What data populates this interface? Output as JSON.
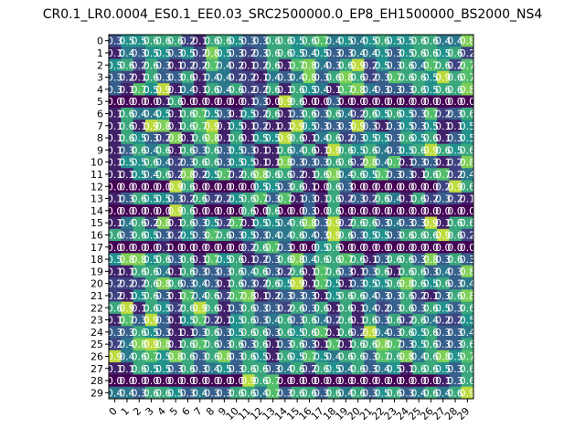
{
  "chart_data": {
    "type": "heatmap",
    "title": "CR0.1_LR0.0004_ES0.1_EE0.03_SRC2500000.0_EP8_EH1500000_BS2000_NS4",
    "x_ticks": [
      "0",
      "1",
      "2",
      "3",
      "4",
      "5",
      "6",
      "7",
      "8",
      "9",
      "10",
      "11",
      "12",
      "13",
      "14",
      "15",
      "16",
      "17",
      "18",
      "19",
      "20",
      "21",
      "22",
      "23",
      "24",
      "25",
      "26",
      "27",
      "28",
      "29"
    ],
    "y_ticks": [
      "0",
      "1",
      "2",
      "3",
      "4",
      "5",
      "6",
      "7",
      "8",
      "9",
      "10",
      "11",
      "12",
      "13",
      "14",
      "15",
      "16",
      "17",
      "18",
      "19",
      "20",
      "21",
      "22",
      "23",
      "24",
      "25",
      "26",
      "27",
      "28",
      "29"
    ],
    "value_range": [
      0,
      1
    ],
    "colormap": "viridis",
    "zero_rows": [
      5,
      12,
      14,
      17,
      28
    ],
    "values": [
      [
        0.25,
        0.5,
        0.5,
        0.6,
        0.6,
        0.6,
        0.2,
        0.1,
        0.6,
        0.6,
        0.5,
        0.3,
        0.3,
        0.6,
        0.6,
        0.5,
        0.6,
        0.7,
        0.4,
        0.5,
        0.4,
        0.5,
        0.6,
        0.5,
        0.5,
        0.6,
        0.6,
        0.4,
        0.4,
        0.8
      ],
      [
        0.1,
        0.4,
        0.3,
        0.5,
        0.5,
        0.3,
        0.5,
        0.2,
        0.8,
        0.5,
        0.3,
        0.2,
        0.3,
        0.6,
        0.6,
        0.5,
        0.4,
        0.5,
        0.3,
        0.3,
        0.4,
        0.4,
        0.5,
        0.3,
        0.5,
        0.6,
        0.6,
        0.5,
        0.6,
        0.2
      ],
      [
        0.5,
        0.6,
        0.2,
        0.6,
        0.3,
        0.1,
        0.2,
        0.2,
        0.7,
        0.4,
        0.2,
        0.1,
        0.2,
        0.6,
        0.1,
        0.7,
        0.8,
        0.4,
        0.3,
        0.6,
        0.9,
        0.2,
        0.5,
        0.3,
        0.6,
        0.4,
        0.7,
        0.6,
        0.2,
        0.7
      ],
      [
        0.3,
        0.2,
        0.1,
        0.6,
        0.3,
        0.3,
        0.6,
        0.1,
        0.4,
        0.4,
        0.2,
        0.2,
        0.1,
        0.4,
        0.3,
        0.4,
        0.8,
        0.3,
        0.6,
        0.8,
        0.6,
        0.2,
        0.3,
        0.7,
        0.6,
        0.6,
        0.5,
        0.9,
        0.6,
        0.7
      ],
      [
        0.3,
        0.1,
        0.7,
        0.5,
        0.9,
        0.1,
        0.4,
        0.1,
        0.6,
        0.4,
        0.6,
        0.2,
        0.2,
        0.6,
        0.1,
        0.6,
        0.5,
        0.4,
        0.1,
        0.7,
        0.8,
        0.4,
        0.3,
        0.3,
        0.3,
        0.6,
        0.5,
        0.6,
        0.6,
        0.8
      ],
      [
        0.0,
        0.0,
        0.0,
        0.0,
        0.1,
        0.6,
        0.0,
        0.0,
        0.0,
        0.0,
        0.0,
        0.1,
        0.3,
        0.0,
        0.9,
        0.6,
        0.0,
        0.0,
        0.3,
        0.0,
        0.0,
        0.0,
        0.0,
        0.0,
        0.0,
        0.0,
        0.0,
        0.0,
        0.0,
        0.0
      ],
      [
        0.1,
        0.6,
        0.4,
        0.4,
        0.5,
        0.1,
        0.6,
        0.7,
        0.5,
        0.3,
        0.1,
        0.5,
        0.2,
        0.6,
        0.1,
        0.3,
        0.6,
        0.3,
        0.6,
        0.4,
        0.2,
        0.6,
        0.5,
        0.6,
        0.5,
        0.3,
        0.7,
        0.2,
        0.3,
        0.6
      ],
      [
        0.1,
        0.6,
        0.1,
        0.9,
        0.8,
        0.1,
        0.6,
        0.7,
        0.9,
        0.1,
        0.5,
        0.1,
        0.2,
        0.1,
        0.1,
        0.9,
        0.5,
        0.3,
        0.3,
        0.3,
        0.9,
        0.3,
        0.1,
        0.3,
        0.5,
        0.3,
        0.5,
        0.1,
        0.1,
        0.5
      ],
      [
        0.1,
        0.6,
        0.5,
        0.3,
        0.2,
        0.8,
        0.1,
        0.6,
        0.8,
        0.1,
        0.6,
        0.1,
        0.5,
        0.5,
        0.9,
        0.6,
        0.1,
        0.4,
        0.6,
        0.2,
        0.3,
        0.5,
        0.5,
        0.3,
        0.6,
        0.5,
        0.6,
        0.1,
        0.3,
        0.5
      ],
      [
        0.1,
        0.3,
        0.6,
        0.4,
        0.6,
        0.1,
        0.6,
        0.3,
        0.6,
        0.3,
        0.5,
        0.3,
        0.1,
        0.1,
        0.6,
        0.4,
        0.6,
        0.1,
        0.9,
        0.6,
        0.5,
        0.6,
        0.4,
        0.3,
        0.5,
        0.6,
        0.9,
        0.6,
        0.5,
        0.6
      ],
      [
        0.1,
        0.5,
        0.5,
        0.6,
        0.4,
        0.2,
        0.3,
        0.6,
        0.6,
        0.3,
        0.5,
        0.5,
        0.1,
        0.1,
        0.8,
        0.3,
        0.3,
        0.3,
        0.6,
        0.6,
        0.2,
        0.8,
        0.4,
        0.7,
        0.1,
        0.3,
        0.3,
        0.1,
        0.2,
        0.8
      ],
      [
        0.1,
        0.1,
        0.5,
        0.4,
        0.6,
        0.2,
        0.8,
        0.2,
        0.5,
        0.7,
        0.2,
        0.6,
        0.8,
        0.6,
        0.6,
        0.2,
        0.1,
        0.6,
        0.8,
        0.4,
        0.6,
        0.5,
        0.7,
        0.3,
        0.3,
        0.1,
        0.6,
        0.7,
        0.2,
        0.4
      ],
      [
        0.0,
        0.0,
        0.0,
        0.0,
        0.0,
        0.9,
        0.6,
        0.0,
        0.0,
        0.0,
        0.0,
        0.0,
        0.5,
        0.5,
        0.3,
        0.6,
        0.1,
        0.0,
        0.6,
        0.3,
        0.0,
        0.0,
        0.0,
        0.0,
        0.0,
        0.0,
        0.0,
        0.2,
        0.9,
        0.6
      ],
      [
        0.1,
        0.3,
        0.6,
        0.5,
        0.5,
        0.3,
        0.2,
        0.6,
        0.2,
        0.2,
        0.5,
        0.6,
        0.7,
        0.3,
        0.7,
        0.1,
        0.3,
        0.1,
        0.6,
        0.2,
        0.3,
        0.2,
        0.6,
        0.4,
        0.1,
        0.6,
        0.2,
        0.3,
        0.2,
        0.1
      ],
      [
        0.0,
        0.0,
        0.0,
        0.0,
        0.0,
        0.9,
        0.6,
        0.0,
        0.0,
        0.0,
        0.0,
        0.6,
        0.0,
        0.6,
        0.0,
        0.0,
        0.3,
        0.0,
        0.6,
        0.0,
        0.0,
        0.0,
        0.0,
        0.0,
        0.0,
        0.0,
        0.0,
        0.0,
        0.0,
        0.0
      ],
      [
        0.1,
        0.4,
        0.6,
        0.2,
        0.8,
        0.1,
        0.6,
        0.3,
        0.5,
        0.2,
        0.7,
        0.1,
        0.5,
        0.5,
        0.4,
        0.6,
        0.8,
        0.3,
        0.9,
        0.2,
        0.6,
        0.6,
        0.3,
        0.4,
        0.3,
        0.3,
        0.9,
        0.1,
        0.6,
        0.6
      ],
      [
        0.6,
        0.3,
        0.6,
        0.5,
        0.3,
        0.2,
        0.5,
        0.3,
        0.7,
        0.6,
        0.3,
        0.5,
        0.3,
        0.4,
        0.4,
        0.6,
        0.4,
        0.3,
        0.9,
        0.6,
        0.3,
        0.5,
        0.5,
        0.3,
        0.6,
        0.6,
        0.6,
        0.9,
        0.6,
        0.2
      ],
      [
        0.0,
        0.0,
        0.0,
        0.0,
        0.1,
        0.0,
        0.0,
        0.0,
        0.0,
        0.0,
        0.0,
        0.2,
        0.6,
        0.7,
        0.3,
        0.0,
        0.0,
        0.5,
        0.6,
        0.0,
        0.0,
        0.0,
        0.0,
        0.0,
        0.0,
        0.0,
        0.0,
        0.0,
        0.0,
        0.0
      ],
      [
        0.5,
        0.8,
        0.8,
        0.5,
        0.6,
        0.3,
        0.6,
        0.1,
        0.7,
        0.5,
        0.6,
        0.1,
        0.2,
        0.3,
        0.6,
        0.8,
        0.4,
        0.6,
        0.6,
        0.7,
        0.6,
        0.1,
        0.3,
        0.6,
        0.6,
        0.3,
        0.8,
        0.3,
        0.6,
        0.3
      ],
      [
        0.1,
        0.1,
        0.6,
        0.6,
        0.4,
        0.1,
        0.6,
        0.3,
        0.3,
        0.3,
        0.6,
        0.4,
        0.6,
        0.3,
        0.2,
        0.6,
        0.1,
        0.7,
        0.6,
        0.3,
        0.1,
        0.3,
        0.6,
        0.1,
        0.6,
        0.6,
        0.3,
        0.4,
        0.3,
        0.8
      ],
      [
        0.2,
        0.2,
        0.2,
        0.6,
        0.8,
        0.6,
        0.3,
        0.4,
        0.3,
        0.1,
        0.6,
        0.3,
        0.2,
        0.6,
        0.5,
        0.9,
        0.1,
        0.7,
        0.5,
        0.1,
        0.3,
        0.5,
        0.5,
        0.6,
        0.8,
        0.6,
        0.5,
        0.6,
        0.3,
        0.4
      ],
      [
        0.2,
        0.1,
        0.5,
        0.6,
        0.3,
        0.1,
        0.7,
        0.4,
        0.6,
        0.2,
        0.7,
        0.8,
        0.1,
        0.2,
        0.3,
        0.3,
        0.3,
        0.1,
        0.5,
        0.6,
        0.6,
        0.4,
        0.3,
        0.3,
        0.6,
        0.2,
        0.1,
        0.3,
        0.6,
        0.8
      ],
      [
        0.6,
        0.9,
        0.1,
        0.6,
        0.5,
        0.2,
        0.6,
        0.9,
        0.6,
        0.1,
        0.3,
        0.6,
        0.3,
        0.3,
        0.2,
        0.6,
        0.3,
        0.6,
        0.1,
        0.6,
        0.1,
        0.4,
        0.2,
        0.3,
        0.6,
        0.3,
        0.6,
        0.5,
        0.3,
        0.6
      ],
      [
        0.1,
        0.7,
        0.3,
        0.9,
        0.3,
        0.1,
        0.5,
        0.7,
        0.2,
        0.1,
        0.5,
        0.6,
        0.3,
        0.4,
        0.6,
        0.3,
        0.6,
        0.4,
        0.2,
        0.6,
        0.1,
        0.6,
        0.3,
        0.6,
        0.2,
        0.6,
        0.4,
        0.2,
        0.2,
        0.5
      ],
      [
        0.3,
        0.3,
        0.6,
        0.5,
        0.3,
        0.1,
        0.1,
        0.3,
        0.6,
        0.3,
        0.5,
        0.6,
        0.6,
        0.3,
        0.6,
        0.5,
        0.6,
        0.7,
        0.1,
        0.6,
        0.2,
        0.9,
        0.4,
        0.3,
        0.6,
        0.5,
        0.6,
        0.3,
        0.3,
        0.4
      ],
      [
        0.2,
        0.4,
        0.8,
        0.9,
        0.8,
        0.1,
        0.6,
        0.7,
        0.6,
        0.3,
        0.6,
        0.3,
        0.6,
        0.1,
        0.3,
        0.6,
        0.3,
        0.1,
        0.7,
        0.1,
        0.6,
        0.6,
        0.8,
        0.7,
        0.3,
        0.5,
        0.6,
        0.3,
        0.3,
        0.6
      ],
      [
        0.9,
        0.4,
        0.6,
        0.7,
        0.5,
        0.8,
        0.6,
        0.3,
        0.6,
        0.8,
        0.3,
        0.6,
        0.5,
        0.1,
        0.6,
        0.5,
        0.7,
        0.5,
        0.4,
        0.6,
        0.6,
        0.3,
        0.7,
        0.6,
        0.8,
        0.4,
        0.6,
        0.8,
        0.5,
        0.7
      ],
      [
        0.1,
        0.1,
        0.6,
        0.5,
        0.5,
        0.3,
        0.6,
        0.3,
        0.4,
        0.5,
        0.3,
        0.6,
        0.6,
        0.3,
        0.4,
        0.6,
        0.2,
        0.6,
        0.5,
        0.4,
        0.6,
        0.3,
        0.4,
        0.5,
        0.1,
        0.6,
        0.6,
        0.5,
        0.3,
        0.6
      ],
      [
        0.0,
        0.0,
        0.0,
        0.0,
        0.0,
        0.0,
        0.0,
        0.0,
        0.0,
        0.0,
        0.0,
        0.9,
        0.6,
        0.7,
        0.0,
        0.0,
        0.0,
        0.0,
        0.0,
        0.0,
        0.0,
        0.0,
        0.0,
        0.0,
        0.0,
        0.0,
        0.0,
        0.1,
        0.3,
        0.6
      ],
      [
        0.4,
        0.4,
        0.3,
        0.6,
        0.6,
        0.5,
        0.3,
        0.4,
        0.3,
        0.3,
        0.6,
        0.6,
        0.4,
        0.7,
        0.3,
        0.6,
        0.6,
        0.3,
        0.6,
        0.4,
        0.6,
        0.3,
        0.5,
        0.6,
        0.3,
        0.4,
        0.6,
        0.4,
        0.6,
        0.9
      ]
    ]
  }
}
